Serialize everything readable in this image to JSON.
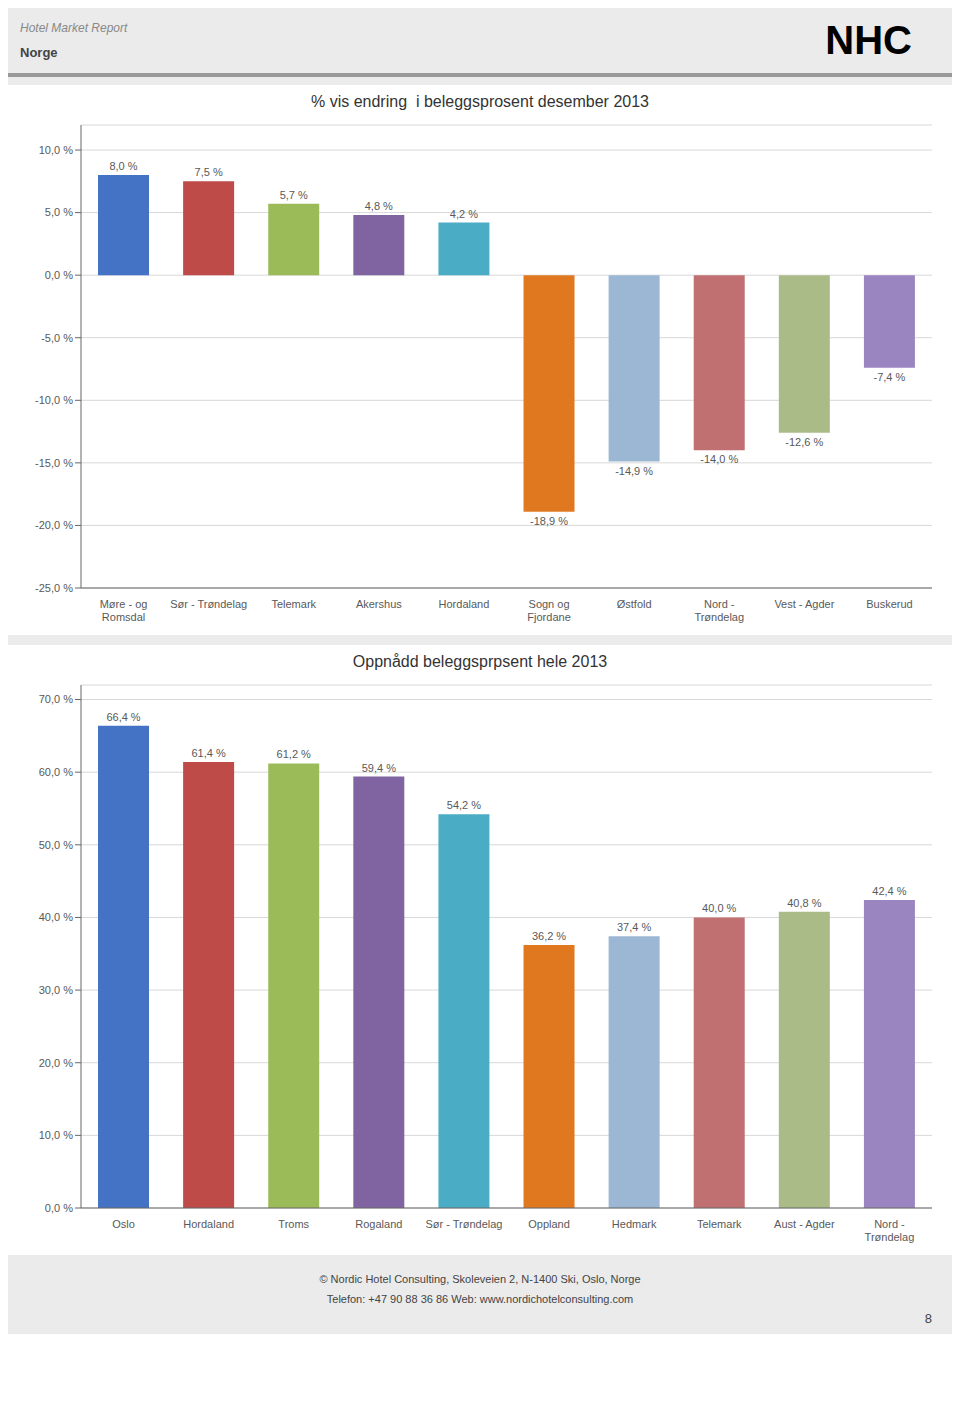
{
  "chart_data": [
    {
      "type": "bar",
      "title": "% vis endring  i beleggsprosent desember 2013",
      "categories": [
        "Møre - og\nRomsdal",
        "Sør - Trøndelag",
        "Telemark",
        "Akershus",
        "Hordaland",
        "Sogn og\nFjordane",
        "Østfold",
        "Nord -\nTrøndelag",
        "Vest - Agder",
        "Buskerud"
      ],
      "values": [
        8.0,
        7.5,
        5.7,
        4.8,
        4.2,
        -18.9,
        -14.9,
        -14.0,
        -12.6,
        -7.4
      ],
      "value_labels": [
        "8,0 %",
        "7,5 %",
        "5,7 %",
        "4,8 %",
        "4,2 %",
        "-18,9 %",
        "-14,9 %",
        "-14,0 %",
        "-12,6 %",
        "-7,4 %"
      ],
      "colors": [
        "#4472C4",
        "#BE4B48",
        "#9BBB59",
        "#8064A2",
        "#4BACC6",
        "#E07820",
        "#9BB7D4",
        "#C07070",
        "#AABB88",
        "#9B85C0"
      ],
      "ylim": [
        -25,
        12
      ],
      "yticks": [
        {
          "value": -25,
          "label": "-25,0 %"
        },
        {
          "value": -20,
          "label": "-20,0 %"
        },
        {
          "value": -15,
          "label": "-15,0 %"
        },
        {
          "value": -10,
          "label": "-10,0 %"
        },
        {
          "value": -5,
          "label": "-5,0 %"
        },
        {
          "value": 0,
          "label": "0,0 %"
        },
        {
          "value": 5,
          "label": "5,0 %"
        },
        {
          "value": 10,
          "label": "10,0 %"
        }
      ],
      "grid": true,
      "data_labels": true
    },
    {
      "type": "bar",
      "title": "Oppnådd beleggsprpsent hele 2013",
      "categories": [
        "Oslo",
        "Hordaland",
        "Troms",
        "Rogaland",
        "Sør - Trøndelag",
        "Oppland",
        "Hedmark",
        "Telemark",
        "Aust - Agder",
        "Nord -\nTrøndelag"
      ],
      "values": [
        66.4,
        61.4,
        61.2,
        59.4,
        54.2,
        36.2,
        37.4,
        40.0,
        40.8,
        42.4
      ],
      "value_labels": [
        "66,4 %",
        "61,4 %",
        "61,2 %",
        "59,4 %",
        "54,2 %",
        "36,2 %",
        "37,4 %",
        "40,0 %",
        "40,8 %",
        "42,4 %"
      ],
      "colors": [
        "#4472C4",
        "#BE4B48",
        "#9BBB59",
        "#8064A2",
        "#4BACC6",
        "#E07820",
        "#9BB7D4",
        "#C07070",
        "#AABB88",
        "#9B85C0"
      ],
      "ylim": [
        0,
        72
      ],
      "yticks": [
        {
          "value": 0,
          "label": "0,0 %"
        },
        {
          "value": 10,
          "label": "10,0 %"
        },
        {
          "value": 20,
          "label": "20,0 %"
        },
        {
          "value": 30,
          "label": "30,0 %"
        },
        {
          "value": 40,
          "label": "40,0 %"
        },
        {
          "value": 50,
          "label": "50,0 %"
        },
        {
          "value": 60,
          "label": "60,0 %"
        },
        {
          "value": 70,
          "label": "70,0 %"
        }
      ],
      "grid": true,
      "data_labels": true
    }
  ],
  "annotations": [
    "Hotel Market Report",
    "Norge",
    "NHC",
    "© Nordic Hotel Consulting, Skoleveien 2, N-1400 Ski, Oslo, Norge",
    "Telefon: +47 90 88 36 86 Web: www.nordichotelconsulting.com",
    "8"
  ]
}
